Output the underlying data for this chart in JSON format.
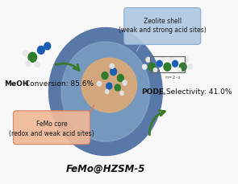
{
  "bg_color": "#f8f8f8",
  "title": "FeMo@HZSM-5",
  "meoh_text1": "MeOH",
  "meoh_text2": " Conversion: 85.6%",
  "pode_bold": "PODE",
  "pode_sub": "2–s",
  "pode_rest": " Selectivity: 41.0%",
  "n_label": "n=2–s",
  "zeolite_box_label": "Zeolite shell\n(weak and strong acid sites)",
  "femo_box_label": "FeMo core\n(redox and weak acid sites)",
  "sphere_outer_color": "#5878a8",
  "sphere_shell_color": "#8aaed0",
  "sphere_core_color": "#d8a87a",
  "zeolite_box_color": "#afc8e0",
  "zeolite_box_edge": "#8aadd4",
  "femo_box_color": "#f0b898",
  "femo_box_edge": "#d48060",
  "arrow_green": "#3a7a28",
  "connector_orange": "#e09060"
}
